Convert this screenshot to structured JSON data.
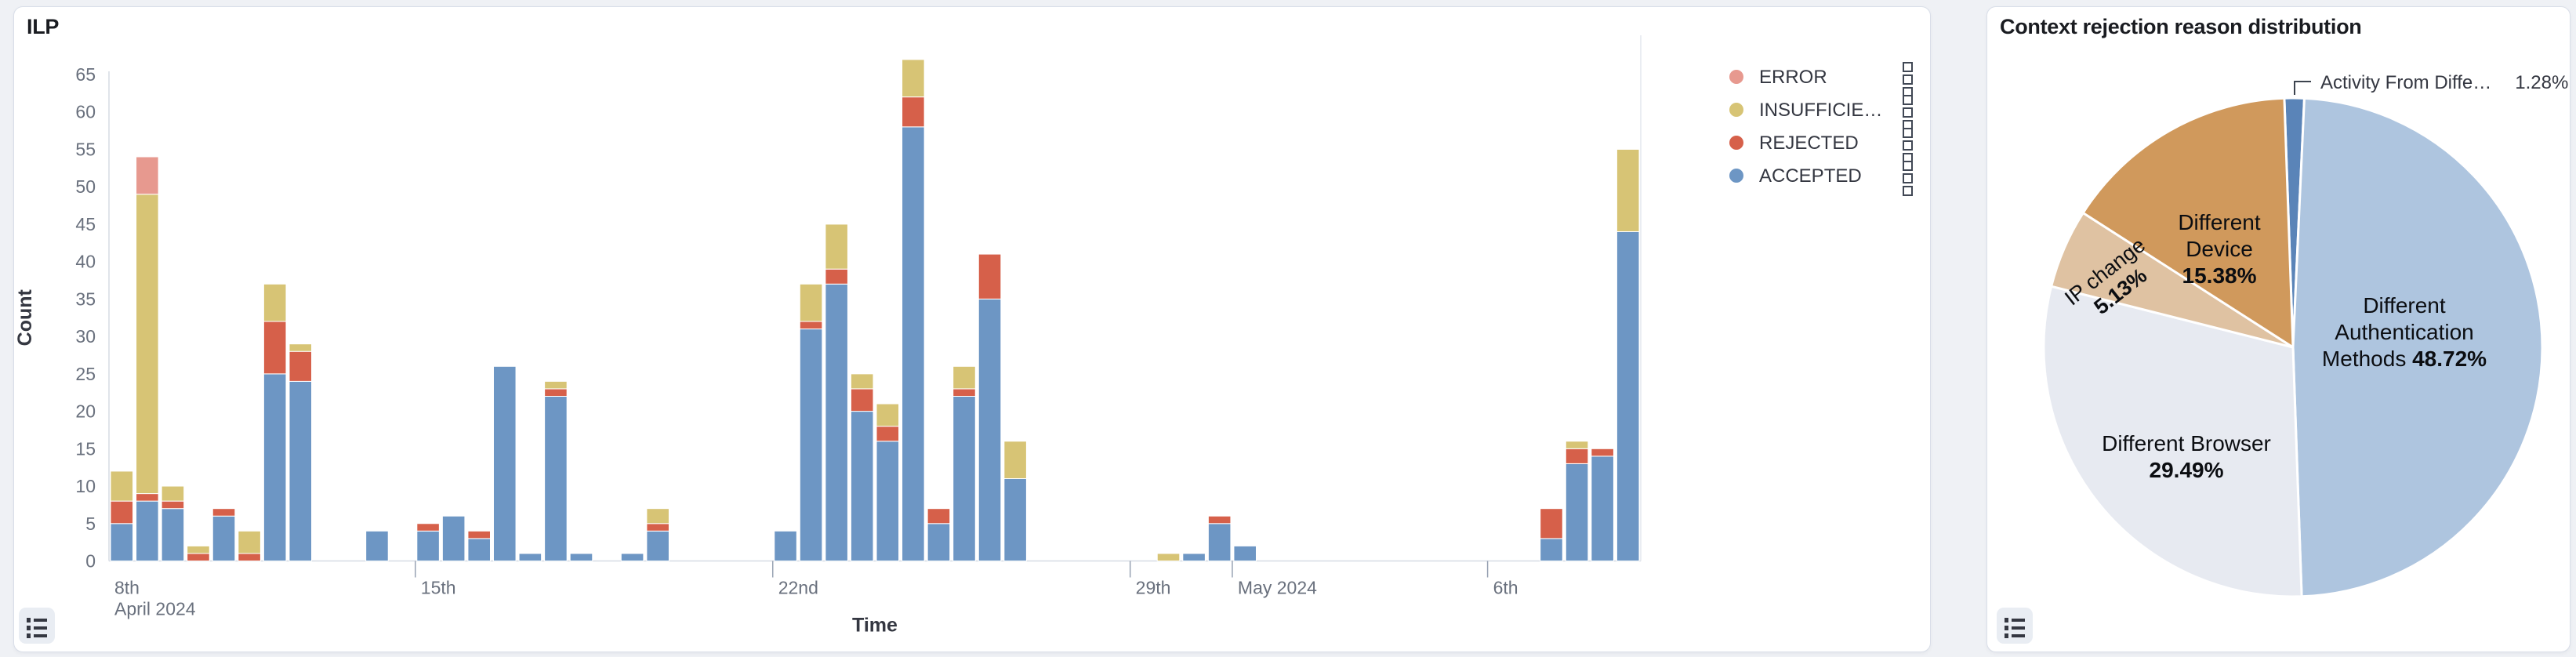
{
  "page": {
    "background": "#EFF1F5"
  },
  "left_panel": {
    "title": "ILP",
    "y_axis_title": "Count",
    "x_axis_title": "Time",
    "legend": {
      "items": [
        {
          "label": "ERROR",
          "color": "#E7998F"
        },
        {
          "label": "INSUFFICIE…",
          "color": "#D7C475"
        },
        {
          "label": "REJECTED",
          "color": "#D6604A"
        },
        {
          "label": "ACCEPTED",
          "color": "#6D96C4"
        }
      ],
      "row_action_icon": "boxes-vertical-icon",
      "toggle_icon": "list-icon"
    }
  },
  "right_panel": {
    "title": "Context rejection reason distribution",
    "labels": {
      "auth_l1": "Different",
      "auth_l2": "Authentication",
      "auth_l3": "Methods ",
      "auth_pct": "48.72%",
      "browser_l1": "Different Browser",
      "browser_pct": "29.49%",
      "device_l1": "Different",
      "device_l2": "Device",
      "device_pct": "15.38%",
      "ip_l1": "IP change",
      "ip_pct": "5.13%",
      "callout_label": "Activity From Diffe…",
      "callout_pct": "1.28%"
    },
    "toggle_icon": "list-icon"
  },
  "chart_data": [
    {
      "type": "bar",
      "stacked": true,
      "title": "ILP",
      "xlabel": "Time",
      "ylabel": "Count",
      "ylim": [
        0,
        65
      ],
      "grid": false,
      "legend_position": "right",
      "y_ticks": [
        0,
        5,
        10,
        15,
        20,
        25,
        30,
        35,
        40,
        45,
        50,
        55,
        60,
        65
      ],
      "x_bucket": "12h",
      "x_domain": [
        "2024-04-09 00:00",
        "2024-05-09 00:00"
      ],
      "x_ticks": [
        {
          "label": "8th",
          "sublabel": "April 2024",
          "slot": 2,
          "tick_mark": false
        },
        {
          "label": "15th",
          "slot": 14,
          "tick_mark": true
        },
        {
          "label": "22nd",
          "slot": 28,
          "tick_mark": true
        },
        {
          "label": "29th",
          "slot": 42,
          "tick_mark": true
        },
        {
          "label": "May 2024",
          "slot": 46,
          "tick_mark": true
        },
        {
          "label": "6th",
          "slot": 56,
          "tick_mark": true
        }
      ],
      "series_stack_order": [
        "ACCEPTED",
        "REJECTED",
        "INSUFFICIENT",
        "ERROR"
      ],
      "colors": {
        "ACCEPTED": "#6D96C4",
        "REJECTED": "#D6604A",
        "INSUFFICIENT": "#D7C475",
        "ERROR": "#E7998F"
      },
      "bars": [
        {
          "time": "2024-04-09 00:00",
          "slot": 2,
          "ACCEPTED": 5,
          "REJECTED": 3,
          "INSUFFICIENT": 4,
          "ERROR": 0
        },
        {
          "time": "2024-04-09 12:00",
          "slot": 3,
          "ACCEPTED": 8,
          "REJECTED": 1,
          "INSUFFICIENT": 40,
          "ERROR": 5
        },
        {
          "time": "2024-04-10 00:00",
          "slot": 4,
          "ACCEPTED": 7,
          "REJECTED": 1,
          "INSUFFICIENT": 2,
          "ERROR": 0
        },
        {
          "time": "2024-04-10 12:00",
          "slot": 5,
          "ACCEPTED": 0,
          "REJECTED": 1,
          "INSUFFICIENT": 1,
          "ERROR": 0
        },
        {
          "time": "2024-04-11 00:00",
          "slot": 6,
          "ACCEPTED": 6,
          "REJECTED": 1,
          "INSUFFICIENT": 0,
          "ERROR": 0
        },
        {
          "time": "2024-04-11 12:00",
          "slot": 7,
          "ACCEPTED": 0,
          "REJECTED": 1,
          "INSUFFICIENT": 3,
          "ERROR": 0
        },
        {
          "time": "2024-04-12 00:00",
          "slot": 8,
          "ACCEPTED": 25,
          "REJECTED": 7,
          "INSUFFICIENT": 5,
          "ERROR": 0
        },
        {
          "time": "2024-04-12 12:00",
          "slot": 9,
          "ACCEPTED": 24,
          "REJECTED": 4,
          "INSUFFICIENT": 1,
          "ERROR": 0
        },
        {
          "time": "2024-04-14 00:00",
          "slot": 12,
          "ACCEPTED": 4,
          "REJECTED": 0,
          "INSUFFICIENT": 0,
          "ERROR": 0
        },
        {
          "time": "2024-04-15 00:00",
          "slot": 14,
          "ACCEPTED": 4,
          "REJECTED": 1,
          "INSUFFICIENT": 0,
          "ERROR": 0
        },
        {
          "time": "2024-04-15 12:00",
          "slot": 15,
          "ACCEPTED": 6,
          "REJECTED": 0,
          "INSUFFICIENT": 0,
          "ERROR": 0
        },
        {
          "time": "2024-04-16 00:00",
          "slot": 16,
          "ACCEPTED": 3,
          "REJECTED": 1,
          "INSUFFICIENT": 0,
          "ERROR": 0
        },
        {
          "time": "2024-04-16 12:00",
          "slot": 17,
          "ACCEPTED": 26,
          "REJECTED": 0,
          "INSUFFICIENT": 0,
          "ERROR": 0
        },
        {
          "time": "2024-04-17 00:00",
          "slot": 18,
          "ACCEPTED": 1,
          "REJECTED": 0,
          "INSUFFICIENT": 0,
          "ERROR": 0
        },
        {
          "time": "2024-04-17 12:00",
          "slot": 19,
          "ACCEPTED": 22,
          "REJECTED": 1,
          "INSUFFICIENT": 1,
          "ERROR": 0
        },
        {
          "time": "2024-04-18 00:00",
          "slot": 20,
          "ACCEPTED": 1,
          "REJECTED": 0,
          "INSUFFICIENT": 0,
          "ERROR": 0
        },
        {
          "time": "2024-04-19 00:00",
          "slot": 22,
          "ACCEPTED": 1,
          "REJECTED": 0,
          "INSUFFICIENT": 0,
          "ERROR": 0
        },
        {
          "time": "2024-04-19 12:00",
          "slot": 23,
          "ACCEPTED": 4,
          "REJECTED": 1,
          "INSUFFICIENT": 2,
          "ERROR": 0
        },
        {
          "time": "2024-04-22 00:00",
          "slot": 28,
          "ACCEPTED": 4,
          "REJECTED": 0,
          "INSUFFICIENT": 0,
          "ERROR": 0
        },
        {
          "time": "2024-04-22 12:00",
          "slot": 29,
          "ACCEPTED": 31,
          "REJECTED": 1,
          "INSUFFICIENT": 5,
          "ERROR": 0
        },
        {
          "time": "2024-04-23 00:00",
          "slot": 30,
          "ACCEPTED": 37,
          "REJECTED": 2,
          "INSUFFICIENT": 6,
          "ERROR": 0
        },
        {
          "time": "2024-04-23 12:00",
          "slot": 31,
          "ACCEPTED": 20,
          "REJECTED": 3,
          "INSUFFICIENT": 2,
          "ERROR": 0
        },
        {
          "time": "2024-04-24 00:00",
          "slot": 32,
          "ACCEPTED": 16,
          "REJECTED": 2,
          "INSUFFICIENT": 3,
          "ERROR": 0
        },
        {
          "time": "2024-04-24 12:00",
          "slot": 33,
          "ACCEPTED": 58,
          "REJECTED": 4,
          "INSUFFICIENT": 5,
          "ERROR": 0
        },
        {
          "time": "2024-04-25 00:00",
          "slot": 34,
          "ACCEPTED": 5,
          "REJECTED": 2,
          "INSUFFICIENT": 0,
          "ERROR": 0
        },
        {
          "time": "2024-04-25 12:00",
          "slot": 35,
          "ACCEPTED": 22,
          "REJECTED": 1,
          "INSUFFICIENT": 3,
          "ERROR": 0
        },
        {
          "time": "2024-04-26 00:00",
          "slot": 36,
          "ACCEPTED": 35,
          "REJECTED": 6,
          "INSUFFICIENT": 0,
          "ERROR": 0
        },
        {
          "time": "2024-04-26 12:00",
          "slot": 37,
          "ACCEPTED": 11,
          "REJECTED": 0,
          "INSUFFICIENT": 5,
          "ERROR": 0
        },
        {
          "time": "2024-04-29 12:00",
          "slot": 43,
          "ACCEPTED": 0,
          "REJECTED": 0,
          "INSUFFICIENT": 1,
          "ERROR": 0
        },
        {
          "time": "2024-04-30 00:00",
          "slot": 44,
          "ACCEPTED": 1,
          "REJECTED": 0,
          "INSUFFICIENT": 0,
          "ERROR": 0
        },
        {
          "time": "2024-04-30 12:00",
          "slot": 45,
          "ACCEPTED": 5,
          "REJECTED": 1,
          "INSUFFICIENT": 0,
          "ERROR": 0
        },
        {
          "time": "2024-05-01 00:00",
          "slot": 46,
          "ACCEPTED": 2,
          "REJECTED": 0,
          "INSUFFICIENT": 0,
          "ERROR": 0
        },
        {
          "time": "2024-05-07 00:00",
          "slot": 58,
          "ACCEPTED": 3,
          "REJECTED": 4,
          "INSUFFICIENT": 0,
          "ERROR": 0
        },
        {
          "time": "2024-05-07 12:00",
          "slot": 59,
          "ACCEPTED": 13,
          "REJECTED": 2,
          "INSUFFICIENT": 1,
          "ERROR": 0
        },
        {
          "time": "2024-05-08 00:00",
          "slot": 60,
          "ACCEPTED": 14,
          "REJECTED": 1,
          "INSUFFICIENT": 0,
          "ERROR": 0
        },
        {
          "time": "2024-05-08 12:00",
          "slot": 61,
          "ACCEPTED": 44,
          "REJECTED": 0,
          "INSUFFICIENT": 11,
          "ERROR": 0
        }
      ]
    },
    {
      "type": "pie",
      "title": "Context rejection reason distribution",
      "start_angle_deg": -2,
      "clockwise": true,
      "slices": [
        {
          "label": "Activity From Diffe…",
          "pct": 1.28,
          "color": "#5A84B8",
          "label_style": "callout"
        },
        {
          "label": "Different Authentication Methods",
          "pct": 48.72,
          "color": "#AEC5DF"
        },
        {
          "label": "Different Browser",
          "pct": 29.49,
          "color": "#E7EAF1"
        },
        {
          "label": "IP change",
          "pct": 5.13,
          "color": "#DFC2A2"
        },
        {
          "label": "Different Device",
          "pct": 15.38,
          "color": "#D0995C"
        }
      ]
    }
  ]
}
